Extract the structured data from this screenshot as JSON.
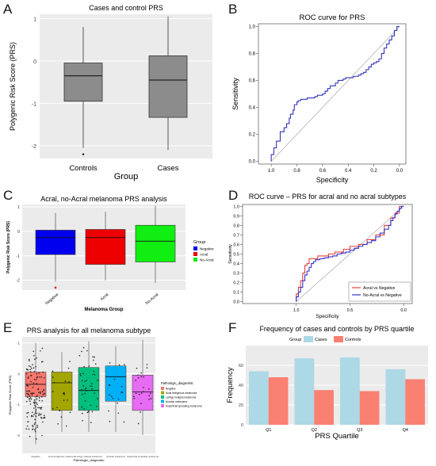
{
  "panels": {
    "A": {
      "letter": "A"
    },
    "B": {
      "letter": "B"
    },
    "C": {
      "letter": "C"
    },
    "D": {
      "letter": "D"
    },
    "E": {
      "letter": "E"
    },
    "F": {
      "letter": "F"
    }
  },
  "colors": {
    "gray_box": "#8c8c8c",
    "blue": "#0000ee",
    "red": "#ee0000",
    "green": "#11ee11",
    "roc_line": "#3333bb",
    "cases": "#add8e6",
    "controls": "#fa8072",
    "panel_bg": "#ebebeb"
  },
  "chart_data": [
    {
      "id": "A",
      "type": "boxplot",
      "title": "Cases and control PRS",
      "xlabel": "Group",
      "ylabel": "Polygenic Risk Score (PRS)",
      "ylim": [
        -2.3,
        1.1
      ],
      "yticks": [
        -2,
        -1,
        0,
        1
      ],
      "categories": [
        "Controls",
        "Cases"
      ],
      "boxes": [
        {
          "name": "Controls",
          "lower_whisker": -2.05,
          "q1": -0.95,
          "median": -0.35,
          "q3": -0.05,
          "upper_whisker": 0.8,
          "outliers": [
            -2.2
          ]
        },
        {
          "name": "Cases",
          "lower_whisker": -2.1,
          "q1": -1.33,
          "median": -0.45,
          "q3": 0.12,
          "upper_whisker": 1.05,
          "outliers": []
        }
      ]
    },
    {
      "id": "B",
      "type": "line",
      "title": "ROC curve for PRS",
      "xlabel": "Specificity",
      "ylabel": "Sensitivity",
      "x_reversed": true,
      "xlim": [
        1.1,
        -0.05
      ],
      "ylim": [
        -0.02,
        1.02
      ],
      "xticks": [
        1.0,
        0.8,
        0.6,
        0.4,
        0.2,
        0.0
      ],
      "yticks": [
        0.0,
        0.2,
        0.4,
        0.6,
        0.8,
        1.0
      ],
      "diagonal": true,
      "series": [
        {
          "x": [
            1.0,
            0.98,
            0.96,
            0.93,
            0.9,
            0.88,
            0.86,
            0.85,
            0.83,
            0.82,
            0.8,
            0.79,
            0.77,
            0.75,
            0.73,
            0.72,
            0.7,
            0.68,
            0.66,
            0.64,
            0.62,
            0.6,
            0.58,
            0.56,
            0.54,
            0.52,
            0.5,
            0.48,
            0.46,
            0.44,
            0.42,
            0.4,
            0.38,
            0.36,
            0.34,
            0.32,
            0.3,
            0.28,
            0.26,
            0.24,
            0.22,
            0.2,
            0.18,
            0.16,
            0.14,
            0.12,
            0.1,
            0.08,
            0.06,
            0.04,
            0.02,
            0.0
          ],
          "y": [
            0.0,
            0.05,
            0.1,
            0.15,
            0.22,
            0.25,
            0.28,
            0.32,
            0.35,
            0.38,
            0.42,
            0.44,
            0.45,
            0.46,
            0.46,
            0.46,
            0.47,
            0.47,
            0.47,
            0.48,
            0.49,
            0.49,
            0.5,
            0.52,
            0.54,
            0.56,
            0.56,
            0.58,
            0.6,
            0.6,
            0.61,
            0.62,
            0.62,
            0.62,
            0.63,
            0.63,
            0.64,
            0.65,
            0.66,
            0.68,
            0.7,
            0.72,
            0.73,
            0.74,
            0.76,
            0.8,
            0.84,
            0.87,
            0.9,
            0.93,
            0.97,
            1.0
          ]
        }
      ]
    },
    {
      "id": "C",
      "type": "boxplot",
      "title": "Acral, no-Acral melanoma PRS analysis",
      "xlabel": "Melanoma Group",
      "ylabel": "Polygenic Risk Score (PRS)",
      "ylim": [
        -2.4,
        1.1
      ],
      "yticks": [
        -2,
        -1,
        0,
        1
      ],
      "categories": [
        "Negative",
        "Acral",
        "No-Acral"
      ],
      "legend_title": "Group",
      "legend": [
        "Negative",
        "Acral",
        "No-Acral"
      ],
      "legend_position": "right",
      "boxes": [
        {
          "name": "Negative",
          "lower_whisker": -2.05,
          "q1": -0.95,
          "median": -0.25,
          "q3": 0.05,
          "upper_whisker": 0.75,
          "outliers": [
            -2.3
          ]
        },
        {
          "name": "Acral",
          "lower_whisker": -2.0,
          "q1": -1.35,
          "median": -0.25,
          "q3": 0.08,
          "upper_whisker": 0.8,
          "outliers": []
        },
        {
          "name": "No-Acral",
          "lower_whisker": -2.1,
          "q1": -1.25,
          "median": -0.4,
          "q3": 0.25,
          "upper_whisker": 1.05,
          "outliers": []
        }
      ]
    },
    {
      "id": "D",
      "type": "line",
      "title": "ROC curve – PRS for acral and no acral subtypes",
      "xlabel": "Specificity",
      "ylabel": "Sensitivity",
      "x_reversed": true,
      "xlim": [
        1.5,
        -0.08
      ],
      "ylim": [
        -0.02,
        1.02
      ],
      "xticks": [
        1.0,
        0.5,
        0.0
      ],
      "yticks": [
        0.0,
        0.1,
        0.2,
        0.3,
        0.4,
        0.5,
        0.6,
        0.7,
        0.8,
        0.9,
        1.0
      ],
      "diagonal": true,
      "legend_position": "bottom-right",
      "series": [
        {
          "name": "Acral vs Negative",
          "x": [
            1.0,
            0.98,
            0.96,
            0.94,
            0.92,
            0.9,
            0.88,
            0.86,
            0.84,
            0.8,
            0.76,
            0.7,
            0.64,
            0.6,
            0.56,
            0.5,
            0.46,
            0.42,
            0.38,
            0.34,
            0.3,
            0.26,
            0.22,
            0.2,
            0.18,
            0.16,
            0.14,
            0.12,
            0.1,
            0.08,
            0.06,
            0.04,
            0.02,
            0.0
          ],
          "y": [
            0.0,
            0.08,
            0.15,
            0.22,
            0.3,
            0.38,
            0.4,
            0.45,
            0.45,
            0.45,
            0.48,
            0.48,
            0.5,
            0.52,
            0.52,
            0.55,
            0.58,
            0.58,
            0.6,
            0.6,
            0.65,
            0.65,
            0.7,
            0.7,
            0.7,
            0.8,
            0.8,
            0.8,
            0.88,
            0.88,
            0.93,
            0.93,
            1.0,
            1.0
          ]
        },
        {
          "name": "No-Acral vs Negative",
          "x": [
            1.0,
            0.98,
            0.96,
            0.94,
            0.92,
            0.9,
            0.88,
            0.86,
            0.84,
            0.82,
            0.78,
            0.74,
            0.7,
            0.66,
            0.62,
            0.58,
            0.54,
            0.5,
            0.46,
            0.42,
            0.38,
            0.34,
            0.3,
            0.26,
            0.22,
            0.18,
            0.14,
            0.12,
            0.1,
            0.08,
            0.06,
            0.04,
            0.02,
            0.0
          ],
          "y": [
            0.0,
            0.05,
            0.1,
            0.15,
            0.22,
            0.28,
            0.32,
            0.36,
            0.4,
            0.42,
            0.44,
            0.45,
            0.46,
            0.47,
            0.48,
            0.5,
            0.51,
            0.52,
            0.54,
            0.56,
            0.58,
            0.6,
            0.62,
            0.64,
            0.68,
            0.72,
            0.76,
            0.8,
            0.85,
            0.88,
            0.92,
            0.95,
            0.98,
            1.0
          ]
        }
      ],
      "legend": [
        "Acral vs Negative",
        "No-Acral vs Negative"
      ]
    },
    {
      "id": "E",
      "type": "boxplot",
      "title": "PRS analysis for all melanoma subtype",
      "xlabel": "Pathologic_diagnostic",
      "ylabel": "Polygenic Risk Score (PRS)",
      "ylim": [
        -2.6,
        1.2
      ],
      "yticks": [
        -2,
        -1,
        0,
        1
      ],
      "categories": [
        "Negative",
        "Acral lentiginous melanoma",
        "Lentigo maligna melanoma",
        "Nodular melanoma",
        "Superficial spreading melanoma"
      ],
      "legend_title": "Pathologic_diagnostic",
      "legend": [
        "Negative",
        "Acral lentiginous melanoma",
        "Lentigo maligna melanoma",
        "Nodular melanoma",
        "Superficial spreading melanoma"
      ],
      "legend_position": "right",
      "boxes": [
        {
          "name": "Negative",
          "lower_whisker": -2.3,
          "q1": -0.75,
          "median": -0.35,
          "q3": 0.05,
          "upper_whisker": 1.0,
          "color": "#f8766d"
        },
        {
          "name": "Acral lentiginous melanoma",
          "lower_whisker": -1.9,
          "q1": -1.2,
          "median": -0.3,
          "q3": 0.05,
          "upper_whisker": 0.7,
          "color": "#a3a500"
        },
        {
          "name": "Lentigo maligna melanoma",
          "lower_whisker": -1.9,
          "q1": -1.2,
          "median": -0.55,
          "q3": 0.2,
          "upper_whisker": 1.05,
          "color": "#00bf7d"
        },
        {
          "name": "Nodular melanoma",
          "lower_whisker": -1.9,
          "q1": -0.9,
          "median": -0.1,
          "q3": 0.25,
          "upper_whisker": 0.9,
          "color": "#00b0f6"
        },
        {
          "name": "Superficial spreading melanoma",
          "lower_whisker": -2.0,
          "q1": -1.2,
          "median": -0.6,
          "q3": -0.05,
          "upper_whisker": 1.1,
          "color": "#e76bf3"
        }
      ]
    },
    {
      "id": "F",
      "type": "bar",
      "title": "Frequency of cases and controls by PRS quartile",
      "xlabel": "PRS Quartile",
      "ylabel": "Frequency",
      "legend_title": "Group",
      "legend_position": "top",
      "categories": [
        "Q1",
        "Q2",
        "Q3",
        "Q4"
      ],
      "ylim": [
        0,
        80
      ],
      "yticks": [
        0,
        20,
        40,
        60
      ],
      "series": [
        {
          "name": "Cases",
          "values": [
            54,
            67,
            68,
            56
          ]
        },
        {
          "name": "Controls",
          "values": [
            48,
            35,
            34,
            46
          ]
        }
      ]
    }
  ]
}
